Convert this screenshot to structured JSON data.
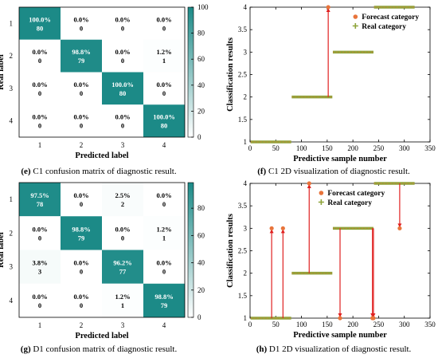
{
  "chart_data": [
    {
      "type": "heatmap",
      "panel": "e",
      "caption": "C1 confusion matrix of diagnostic result.",
      "xlabel": "Predicted label",
      "ylabel": "Real label",
      "labels": [
        "1",
        "2",
        "3",
        "4"
      ],
      "percent": [
        [
          "100.0%",
          "0.0%",
          "0.0%",
          "0.0%"
        ],
        [
          "0.0%",
          "98.8%",
          "0.0%",
          "1.2%"
        ],
        [
          "0.0%",
          "0.0%",
          "100.0%",
          "0.0%"
        ],
        [
          "0.0%",
          "0.0%",
          "0.0%",
          "100.0%"
        ]
      ],
      "counts": [
        [
          80,
          0,
          0,
          0
        ],
        [
          0,
          79,
          0,
          1
        ],
        [
          0,
          0,
          80,
          0
        ],
        [
          0,
          0,
          0,
          80
        ]
      ],
      "colorbar_ticks": [
        "0",
        "20",
        "40",
        "60",
        "80",
        "100"
      ],
      "colorbar_max": 100
    },
    {
      "type": "scatter",
      "panel": "f",
      "caption": "C1 2D visualization of diagnostic result.",
      "xlabel": "Predictive sample number",
      "ylabel": "Classification results",
      "xlim": [
        0,
        350
      ],
      "ylim": [
        1,
        4
      ],
      "xticks": [
        "0",
        "50",
        "100",
        "150",
        "200",
        "250",
        "300",
        "350"
      ],
      "yticks": [
        "1",
        "1.5",
        "2",
        "2.5",
        "3",
        "3.5",
        "4"
      ],
      "legend": {
        "forecast": "Forecast category",
        "real": "Real category",
        "position": "top-right"
      },
      "real_segments": [
        [
          1,
          80,
          1
        ],
        [
          81,
          160,
          2
        ],
        [
          161,
          240,
          3
        ],
        [
          241,
          320,
          4
        ]
      ],
      "forecast_errors": [
        {
          "x": 152,
          "real": 2,
          "predicted": 4
        }
      ]
    },
    {
      "type": "heatmap",
      "panel": "g",
      "caption": "D1 confusion matrix of diagnostic result.",
      "xlabel": "Predicted label",
      "ylabel": "Real label",
      "labels": [
        "1",
        "2",
        "3",
        "4"
      ],
      "percent": [
        [
          "97.5%",
          "0.0%",
          "2.5%",
          "0.0%"
        ],
        [
          "0.0%",
          "98.8%",
          "0.0%",
          "1.2%"
        ],
        [
          "3.8%",
          "0.0%",
          "96.2%",
          "0.0%"
        ],
        [
          "0.0%",
          "0.0%",
          "1.2%",
          "98.8%"
        ]
      ],
      "counts": [
        [
          78,
          0,
          2,
          0
        ],
        [
          0,
          79,
          0,
          1
        ],
        [
          3,
          0,
          77,
          0
        ],
        [
          0,
          0,
          1,
          79
        ]
      ],
      "colorbar_ticks": [
        "0",
        "20",
        "40",
        "60",
        "80"
      ],
      "colorbar_max": 98.8
    },
    {
      "type": "scatter",
      "panel": "h",
      "caption": "D1 2D visualization of diagnostic result.",
      "xlabel": "Predictive sample number",
      "ylabel": "Classification results",
      "xlim": [
        0,
        350
      ],
      "ylim": [
        1,
        4
      ],
      "xticks": [
        "0",
        "50",
        "100",
        "150",
        "200",
        "250",
        "300",
        "350"
      ],
      "yticks": [
        "1",
        "1.5",
        "2",
        "2.5",
        "3",
        "3.5",
        "4"
      ],
      "legend": {
        "forecast": "Forecast category",
        "real": "Real category",
        "position": "top-center"
      },
      "real_segments": [
        [
          1,
          80,
          1
        ],
        [
          81,
          160,
          2
        ],
        [
          161,
          240,
          3
        ],
        [
          241,
          320,
          4
        ]
      ],
      "forecast_errors": [
        {
          "x": 42,
          "real": 1,
          "predicted": 3
        },
        {
          "x": 64,
          "real": 1,
          "predicted": 3
        },
        {
          "x": 115,
          "real": 2,
          "predicted": 4
        },
        {
          "x": 175,
          "real": 3,
          "predicted": 1
        },
        {
          "x": 238,
          "real": 3,
          "predicted": 1
        },
        {
          "x": 240,
          "real": 3,
          "predicted": 1
        },
        {
          "x": 291,
          "real": 4,
          "predicted": 3
        }
      ]
    }
  ],
  "colors": {
    "diag": "#1c8a87",
    "forecast": "#e8743b",
    "real": "#8ea43a",
    "arrow": "#e02020"
  }
}
